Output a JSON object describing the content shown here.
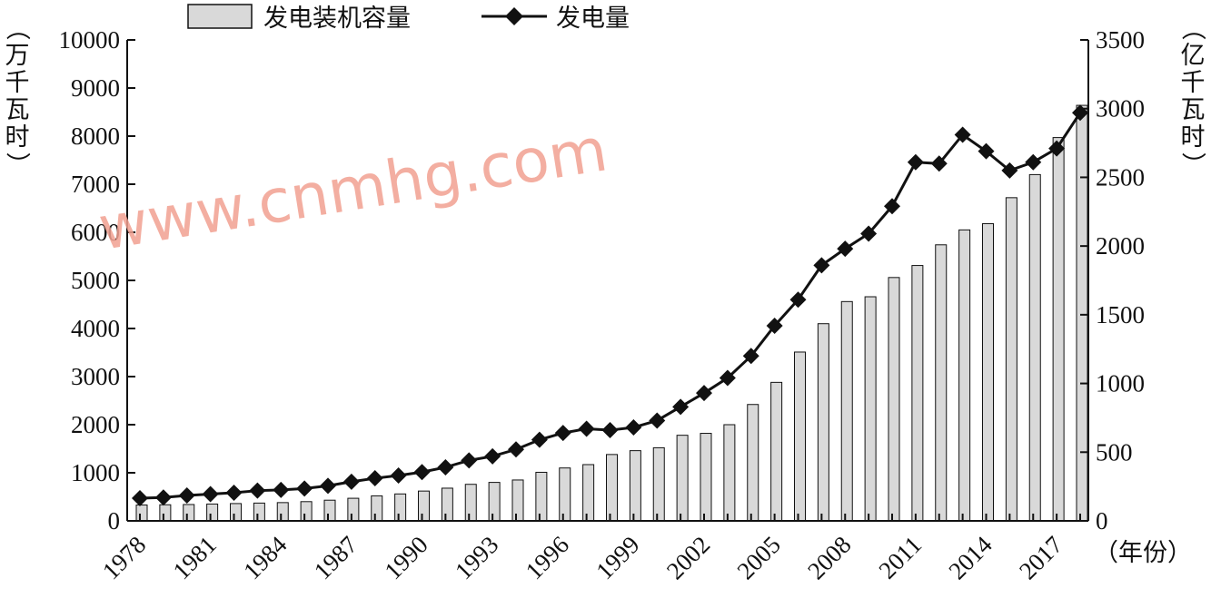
{
  "chart_data": {
    "type": "bar+line",
    "title": "",
    "legend": [
      "发电装机容量",
      "发电量"
    ],
    "legend_position": "top",
    "left_axis_unit": "（万千瓦时）",
    "right_axis_unit": "（亿千瓦时）",
    "x_axis_unit": "（年份）",
    "left_ylim": [
      0,
      10000
    ],
    "right_ylim": [
      0,
      3500
    ],
    "left_ticks": [
      0,
      1000,
      2000,
      3000,
      4000,
      5000,
      6000,
      7000,
      8000,
      9000,
      10000
    ],
    "right_ticks": [
      0,
      500,
      1000,
      1500,
      2000,
      2500,
      3000,
      3500
    ],
    "x_tick_labels": [
      "1978",
      "1981",
      "1984",
      "1987",
      "1990",
      "1993",
      "1996",
      "1999",
      "2002",
      "2005",
      "2008",
      "2011",
      "2014",
      "2017"
    ],
    "years": [
      1978,
      1979,
      1980,
      1981,
      1982,
      1983,
      1984,
      1985,
      1986,
      1987,
      1988,
      1989,
      1990,
      1991,
      1992,
      1993,
      1994,
      1995,
      1996,
      1997,
      1998,
      1999,
      2000,
      2001,
      2002,
      2003,
      2004,
      2005,
      2006,
      2007,
      2008,
      2009,
      2010,
      2011,
      2012,
      2013,
      2014,
      2015,
      2016,
      2017,
      2018
    ],
    "series": [
      {
        "name": "发电装机容量",
        "type": "bar",
        "axis": "left",
        "color": "#d9d9d9",
        "values": [
          330,
          335,
          340,
          350,
          360,
          370,
          380,
          400,
          430,
          470,
          520,
          560,
          620,
          680,
          760,
          800,
          850,
          1010,
          1100,
          1170,
          1380,
          1460,
          1520,
          1780,
          1820,
          2000,
          2420,
          2880,
          3510,
          4100,
          4560,
          4660,
          5060,
          5310,
          5740,
          6050,
          6180,
          6720,
          7200,
          7970,
          8640
        ]
      },
      {
        "name": "发电量",
        "type": "line",
        "axis": "right",
        "color": "#111111",
        "values": [
          165,
          170,
          185,
          195,
          205,
          220,
          225,
          235,
          255,
          285,
          310,
          330,
          355,
          390,
          440,
          470,
          520,
          590,
          640,
          670,
          660,
          680,
          730,
          830,
          930,
          1040,
          1200,
          1420,
          1610,
          1860,
          1980,
          2090,
          2290,
          2610,
          2600,
          2810,
          2690,
          2550,
          2610,
          2710,
          2970
        ]
      }
    ],
    "watermark": "www.cnmhg.com"
  }
}
